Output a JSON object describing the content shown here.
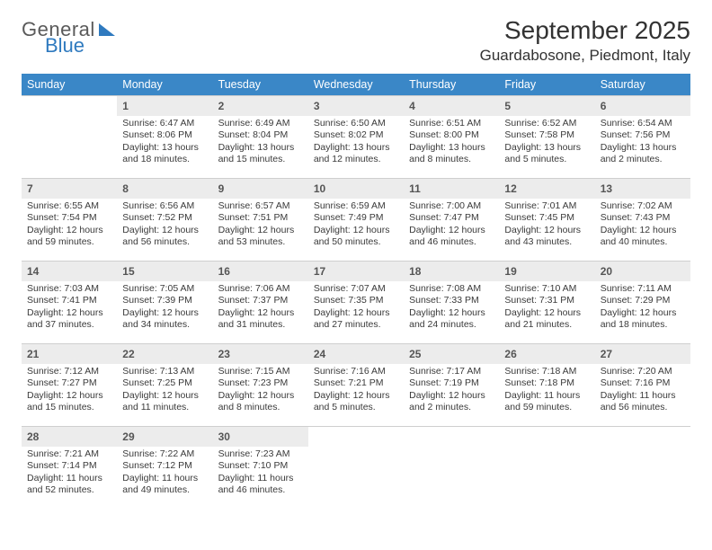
{
  "brand": {
    "word1": "General",
    "word2": "Blue"
  },
  "title": "September 2025",
  "location": "Guardabosone, Piedmont, Italy",
  "colors": {
    "header_bg": "#3a87c7",
    "header_fg": "#ffffff",
    "daynum_bg": "#ececec",
    "grid_line": "#cfcfcf",
    "body_text": "#3a3a3a",
    "logo_gray": "#5a5a5a",
    "logo_blue": "#2f7abf"
  },
  "weekdays": [
    "Sunday",
    "Monday",
    "Tuesday",
    "Wednesday",
    "Thursday",
    "Friday",
    "Saturday"
  ],
  "weeks": [
    [
      null,
      {
        "n": "1",
        "sr": "6:47 AM",
        "ss": "8:06 PM",
        "dl": "13 hours and 18 minutes."
      },
      {
        "n": "2",
        "sr": "6:49 AM",
        "ss": "8:04 PM",
        "dl": "13 hours and 15 minutes."
      },
      {
        "n": "3",
        "sr": "6:50 AM",
        "ss": "8:02 PM",
        "dl": "13 hours and 12 minutes."
      },
      {
        "n": "4",
        "sr": "6:51 AM",
        "ss": "8:00 PM",
        "dl": "13 hours and 8 minutes."
      },
      {
        "n": "5",
        "sr": "6:52 AM",
        "ss": "7:58 PM",
        "dl": "13 hours and 5 minutes."
      },
      {
        "n": "6",
        "sr": "6:54 AM",
        "ss": "7:56 PM",
        "dl": "13 hours and 2 minutes."
      }
    ],
    [
      {
        "n": "7",
        "sr": "6:55 AM",
        "ss": "7:54 PM",
        "dl": "12 hours and 59 minutes."
      },
      {
        "n": "8",
        "sr": "6:56 AM",
        "ss": "7:52 PM",
        "dl": "12 hours and 56 minutes."
      },
      {
        "n": "9",
        "sr": "6:57 AM",
        "ss": "7:51 PM",
        "dl": "12 hours and 53 minutes."
      },
      {
        "n": "10",
        "sr": "6:59 AM",
        "ss": "7:49 PM",
        "dl": "12 hours and 50 minutes."
      },
      {
        "n": "11",
        "sr": "7:00 AM",
        "ss": "7:47 PM",
        "dl": "12 hours and 46 minutes."
      },
      {
        "n": "12",
        "sr": "7:01 AM",
        "ss": "7:45 PM",
        "dl": "12 hours and 43 minutes."
      },
      {
        "n": "13",
        "sr": "7:02 AM",
        "ss": "7:43 PM",
        "dl": "12 hours and 40 minutes."
      }
    ],
    [
      {
        "n": "14",
        "sr": "7:03 AM",
        "ss": "7:41 PM",
        "dl": "12 hours and 37 minutes."
      },
      {
        "n": "15",
        "sr": "7:05 AM",
        "ss": "7:39 PM",
        "dl": "12 hours and 34 minutes."
      },
      {
        "n": "16",
        "sr": "7:06 AM",
        "ss": "7:37 PM",
        "dl": "12 hours and 31 minutes."
      },
      {
        "n": "17",
        "sr": "7:07 AM",
        "ss": "7:35 PM",
        "dl": "12 hours and 27 minutes."
      },
      {
        "n": "18",
        "sr": "7:08 AM",
        "ss": "7:33 PM",
        "dl": "12 hours and 24 minutes."
      },
      {
        "n": "19",
        "sr": "7:10 AM",
        "ss": "7:31 PM",
        "dl": "12 hours and 21 minutes."
      },
      {
        "n": "20",
        "sr": "7:11 AM",
        "ss": "7:29 PM",
        "dl": "12 hours and 18 minutes."
      }
    ],
    [
      {
        "n": "21",
        "sr": "7:12 AM",
        "ss": "7:27 PM",
        "dl": "12 hours and 15 minutes."
      },
      {
        "n": "22",
        "sr": "7:13 AM",
        "ss": "7:25 PM",
        "dl": "12 hours and 11 minutes."
      },
      {
        "n": "23",
        "sr": "7:15 AM",
        "ss": "7:23 PM",
        "dl": "12 hours and 8 minutes."
      },
      {
        "n": "24",
        "sr": "7:16 AM",
        "ss": "7:21 PM",
        "dl": "12 hours and 5 minutes."
      },
      {
        "n": "25",
        "sr": "7:17 AM",
        "ss": "7:19 PM",
        "dl": "12 hours and 2 minutes."
      },
      {
        "n": "26",
        "sr": "7:18 AM",
        "ss": "7:18 PM",
        "dl": "11 hours and 59 minutes."
      },
      {
        "n": "27",
        "sr": "7:20 AM",
        "ss": "7:16 PM",
        "dl": "11 hours and 56 minutes."
      }
    ],
    [
      {
        "n": "28",
        "sr": "7:21 AM",
        "ss": "7:14 PM",
        "dl": "11 hours and 52 minutes."
      },
      {
        "n": "29",
        "sr": "7:22 AM",
        "ss": "7:12 PM",
        "dl": "11 hours and 49 minutes."
      },
      {
        "n": "30",
        "sr": "7:23 AM",
        "ss": "7:10 PM",
        "dl": "11 hours and 46 minutes."
      },
      null,
      null,
      null,
      null
    ]
  ],
  "labels": {
    "sunrise": "Sunrise:",
    "sunset": "Sunset:",
    "daylight": "Daylight:"
  }
}
